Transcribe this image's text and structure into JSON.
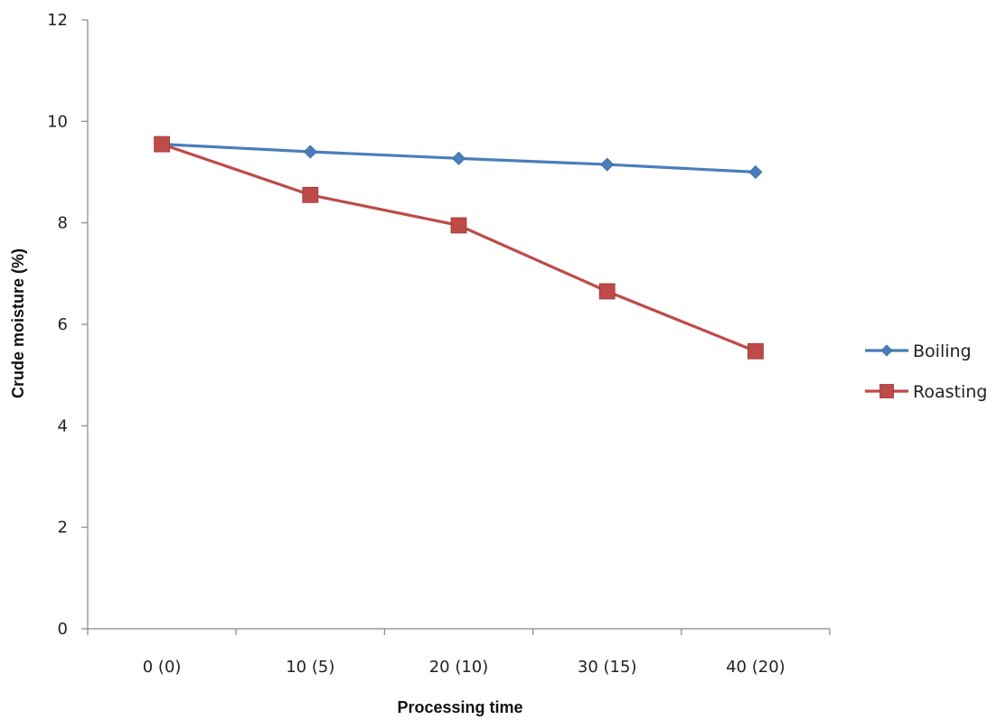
{
  "chart_data": {
    "type": "line",
    "title": "",
    "xlabel": "Processing time",
    "ylabel": "Crude moisture (%)",
    "categories": [
      "0 (0)",
      "10 (5)",
      "20 (10)",
      "30 (15)",
      "40 (20)"
    ],
    "ylim": [
      0,
      12
    ],
    "yticks": [
      "0",
      "2",
      "4",
      "6",
      "8",
      "10",
      "12"
    ],
    "grid": false,
    "legend_position": "right",
    "series": [
      {
        "name": "Boiling",
        "values": [
          9.55,
          9.4,
          9.27,
          9.15,
          9.0
        ],
        "color": "#4a7ebb",
        "marker": "diamond"
      },
      {
        "name": "Roasting",
        "values": [
          9.55,
          8.55,
          7.95,
          6.65,
          5.47
        ],
        "color": "#be4b48",
        "marker": "square"
      }
    ]
  }
}
